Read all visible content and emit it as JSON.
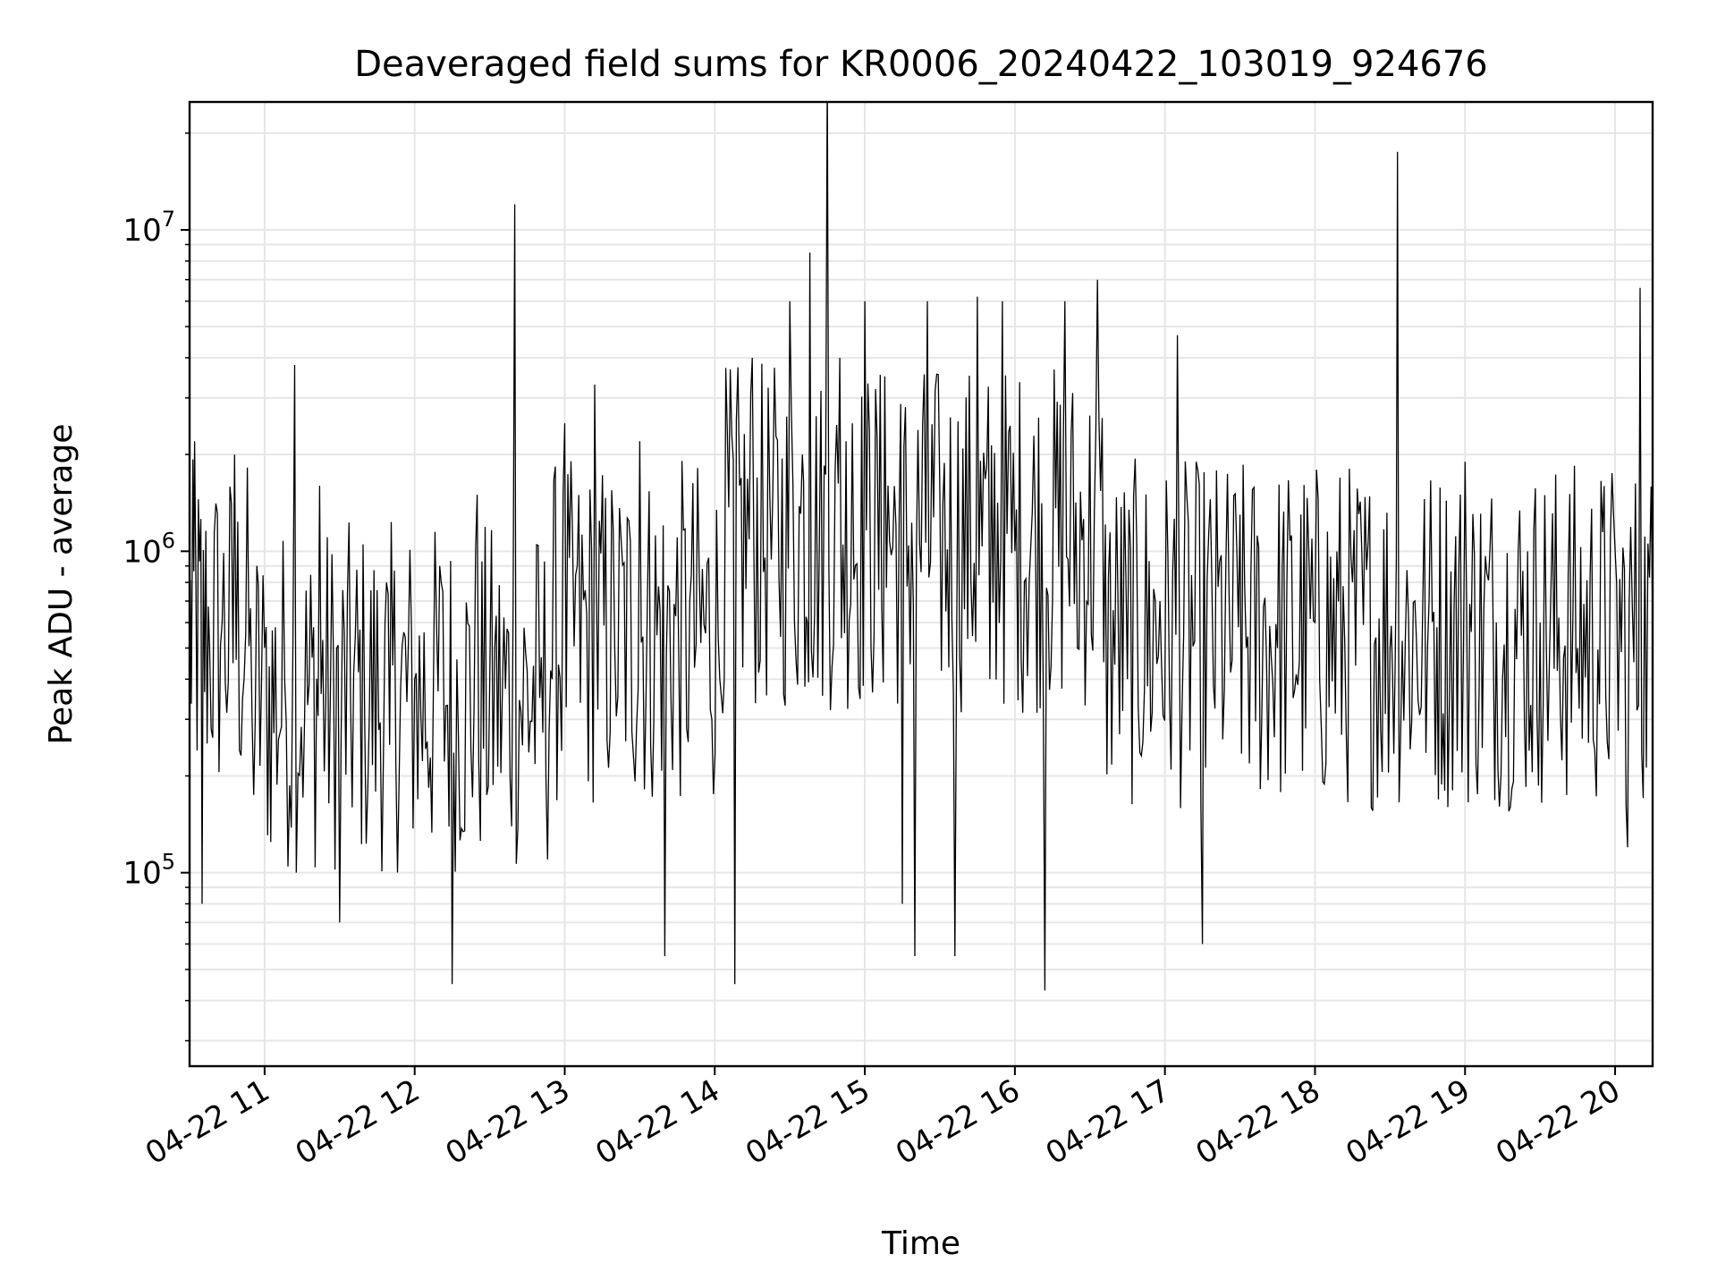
{
  "chart_data": {
    "type": "line",
    "title": "Deaveraged field sums for KR0006_20240422_103019_924676",
    "xlabel": "Time",
    "ylabel": "Peak ADU - average",
    "yscale": "log",
    "ylim": [
      25000,
      25000000
    ],
    "xlim": [
      "2024-04-22 10:30",
      "2024-04-22 20:15"
    ],
    "x_tick_labels": [
      "04-22 11",
      "04-22 12",
      "04-22 13",
      "04-22 14",
      "04-22 15",
      "04-22 16",
      "04-22 17",
      "04-22 18",
      "04-22 19",
      "04-22 20"
    ],
    "y_tick_labels": [
      {
        "base": "10",
        "exp": "5",
        "value": 100000
      },
      {
        "base": "10",
        "exp": "6",
        "value": 1000000
      },
      {
        "base": "10",
        "exp": "7",
        "value": 10000000
      }
    ],
    "grid": true,
    "line_color": "#000000",
    "series": [
      {
        "x": [
          "2024-04-22 10:30",
          "2024-04-22 10:32",
          "2024-04-22 10:35",
          "2024-04-22 10:38",
          "2024-04-22 10:43",
          "2024-04-22 10:48",
          "2024-04-22 10:55",
          "2024-04-22 11:00",
          "2024-04-22 11:08",
          "2024-04-22 11:12",
          "2024-04-22 11:16",
          "2024-04-22 11:22",
          "2024-04-22 11:30",
          "2024-04-22 11:40",
          "2024-04-22 11:50",
          "2024-04-22 12:00",
          "2024-04-22 12:10",
          "2024-04-22 12:15",
          "2024-04-22 12:25",
          "2024-04-22 12:32",
          "2024-04-22 12:40",
          "2024-04-22 12:50",
          "2024-04-22 12:55",
          "2024-04-22 13:00",
          "2024-04-22 13:05",
          "2024-04-22 13:12",
          "2024-04-22 13:20",
          "2024-04-22 13:30",
          "2024-04-22 13:40",
          "2024-04-22 13:50",
          "2024-04-22 14:02",
          "2024-04-22 14:08",
          "2024-04-22 14:15",
          "2024-04-22 14:22",
          "2024-04-22 14:30",
          "2024-04-22 14:35",
          "2024-04-22 14:38",
          "2024-04-22 14:45",
          "2024-04-22 14:50",
          "2024-04-22 14:55",
          "2024-04-22 15:00",
          "2024-04-22 15:08",
          "2024-04-22 15:15",
          "2024-04-22 15:20",
          "2024-04-22 15:25",
          "2024-04-22 15:30",
          "2024-04-22 15:36",
          "2024-04-22 15:45",
          "2024-04-22 15:50",
          "2024-04-22 15:55",
          "2024-04-22 16:00",
          "2024-04-22 16:12",
          "2024-04-22 16:20",
          "2024-04-22 16:25",
          "2024-04-22 16:33",
          "2024-04-22 16:45",
          "2024-04-22 16:58",
          "2024-04-22 17:05",
          "2024-04-22 17:15",
          "2024-04-22 17:30",
          "2024-04-22 17:45",
          "2024-04-22 18:00",
          "2024-04-22 18:15",
          "2024-04-22 18:30",
          "2024-04-22 18:33",
          "2024-04-22 18:45",
          "2024-04-22 19:00",
          "2024-04-22 19:15",
          "2024-04-22 19:30",
          "2024-04-22 19:45",
          "2024-04-22 20:00",
          "2024-04-22 20:05",
          "2024-04-22 20:10",
          "2024-04-22 20:15"
        ],
        "y": [
          500000,
          2200000,
          80000,
          500000,
          600000,
          2000000,
          300000,
          500000,
          400000,
          3800000,
          300000,
          1600000,
          70000,
          300000,
          250000,
          400000,
          900000,
          45000,
          1500000,
          500000,
          12000000,
          350000,
          400000,
          2500000,
          900000,
          3300000,
          500000,
          2200000,
          55000,
          700000,
          400000,
          45000,
          4000000,
          1500000,
          6000000,
          2000000,
          8500000,
          32000000,
          4000000,
          2500000,
          6000000,
          3500000,
          80000,
          55000,
          6000000,
          1500000,
          55000,
          6200000,
          400000,
          6000000,
          1000000,
          43000,
          6000000,
          500000,
          7000000,
          400000,
          700000,
          4700000,
          60000,
          1300000,
          500000,
          600000,
          800000,
          500000,
          17500000,
          500000,
          1900000,
          400000,
          600000,
          500000,
          1000000,
          120000,
          6600000,
          600000
        ]
      }
    ]
  }
}
